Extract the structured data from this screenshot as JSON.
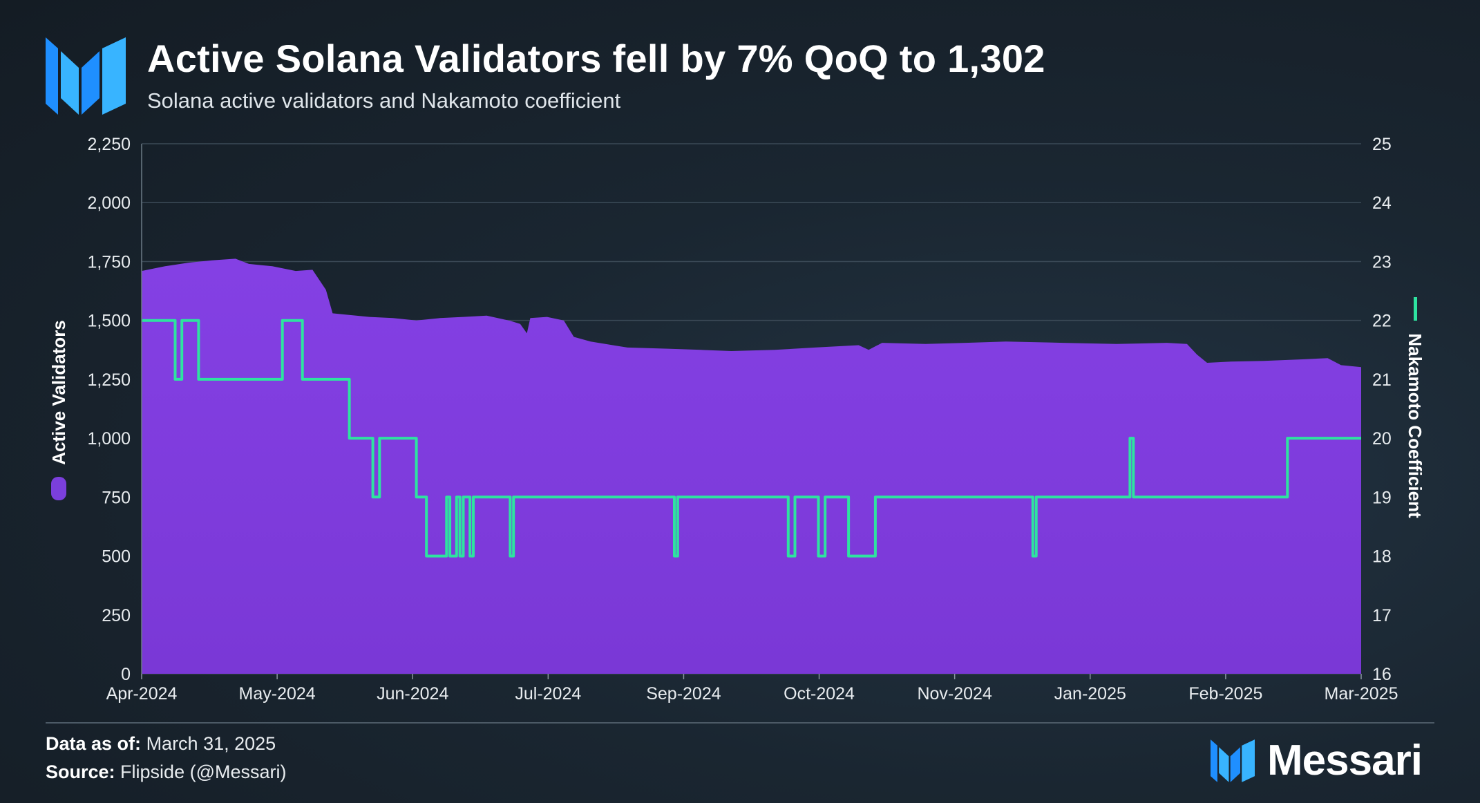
{
  "header": {
    "title": "Active Solana Validators fell by 7% QoQ to 1,302",
    "subtitle": "Solana active validators and Nakamoto coefficient"
  },
  "footer": {
    "data_as_of_label": "Data as of:",
    "data_as_of_value": "March 31, 2025",
    "source_label": "Source:",
    "source_value": "Flipside (@Messari)",
    "brand_name": "Messari"
  },
  "colors": {
    "validators": "#7b3fdc",
    "nakamoto": "#2ee3a0",
    "brand": "#1f8fff"
  },
  "icons": [
    "messari-logo-icon",
    "legend-validators-swatch-icon",
    "legend-nakamoto-line-icon"
  ],
  "chart_data": {
    "type": "area",
    "x_tick_labels": [
      "Apr-2024",
      "May-2024",
      "Jun-2024",
      "Jul-2024",
      "Sep-2024",
      "Oct-2024",
      "Nov-2024",
      "Jan-2025",
      "Feb-2025",
      "Mar-2025"
    ],
    "y_left": {
      "label": "Active Validators",
      "lim": [
        0,
        2250
      ],
      "ticks": [
        0,
        250,
        500,
        750,
        1000,
        1250,
        1500,
        1750,
        2000,
        2250
      ],
      "tick_labels": [
        "0",
        "250",
        "500",
        "750",
        "1,000",
        "1,250",
        "1,500",
        "1,750",
        "2,000",
        "2,250"
      ]
    },
    "y_right": {
      "label": "Nakamoto Coefficient",
      "lim": [
        16,
        25
      ],
      "ticks": [
        16,
        17,
        18,
        19,
        20,
        21,
        22,
        23,
        24,
        25
      ],
      "tick_labels": [
        "16",
        "17",
        "18",
        "19",
        "20",
        "21",
        "22",
        "23",
        "24",
        "25"
      ]
    },
    "grid": true,
    "series": [
      {
        "name": "Active Validators",
        "type": "area",
        "axis": "left",
        "points": [
          [
            "2024-04-01",
            1710
          ],
          [
            "2024-04-08",
            1730
          ],
          [
            "2024-04-15",
            1745
          ],
          [
            "2024-04-22",
            1755
          ],
          [
            "2024-04-29",
            1762
          ],
          [
            "2024-05-03",
            1740
          ],
          [
            "2024-05-10",
            1730
          ],
          [
            "2024-05-17",
            1710
          ],
          [
            "2024-05-22",
            1715
          ],
          [
            "2024-05-26",
            1630
          ],
          [
            "2024-05-28",
            1530
          ],
          [
            "2024-06-08",
            1515
          ],
          [
            "2024-06-15",
            1510
          ],
          [
            "2024-06-22",
            1500
          ],
          [
            "2024-06-29",
            1510
          ],
          [
            "2024-07-06",
            1515
          ],
          [
            "2024-07-13",
            1520
          ],
          [
            "2024-07-20",
            1498
          ],
          [
            "2024-07-23",
            1485
          ],
          [
            "2024-07-25",
            1445
          ],
          [
            "2024-07-26",
            1510
          ],
          [
            "2024-07-31",
            1515
          ],
          [
            "2024-08-05",
            1500
          ],
          [
            "2024-08-08",
            1430
          ],
          [
            "2024-08-13",
            1410
          ],
          [
            "2024-08-24",
            1385
          ],
          [
            "2024-09-05",
            1380
          ],
          [
            "2024-09-15",
            1375
          ],
          [
            "2024-09-24",
            1370
          ],
          [
            "2024-10-07",
            1375
          ],
          [
            "2024-10-19",
            1385
          ],
          [
            "2024-11-01",
            1395
          ],
          [
            "2024-11-04",
            1375
          ],
          [
            "2024-11-08",
            1405
          ],
          [
            "2024-11-21",
            1400
          ],
          [
            "2024-12-03",
            1405
          ],
          [
            "2024-12-15",
            1410
          ],
          [
            "2025-01-01",
            1405
          ],
          [
            "2025-01-17",
            1400
          ],
          [
            "2025-02-01",
            1405
          ],
          [
            "2025-02-07",
            1400
          ],
          [
            "2025-02-10",
            1355
          ],
          [
            "2025-02-13",
            1320
          ],
          [
            "2025-02-20",
            1325
          ],
          [
            "2025-03-02",
            1328
          ],
          [
            "2025-03-14",
            1335
          ],
          [
            "2025-03-21",
            1340
          ],
          [
            "2025-03-25",
            1310
          ],
          [
            "2025-03-31",
            1302
          ]
        ]
      },
      {
        "name": "Nakamoto Coefficient",
        "type": "step",
        "axis": "right",
        "points": [
          [
            "2024-04-01",
            22
          ],
          [
            "2024-04-11",
            21
          ],
          [
            "2024-04-13",
            22
          ],
          [
            "2024-04-18",
            21
          ],
          [
            "2024-05-13",
            22
          ],
          [
            "2024-05-19",
            21
          ],
          [
            "2024-06-02",
            20
          ],
          [
            "2024-06-09",
            19
          ],
          [
            "2024-06-11",
            20
          ],
          [
            "2024-06-22",
            19
          ],
          [
            "2024-06-25",
            18
          ],
          [
            "2024-07-01",
            19
          ],
          [
            "2024-07-02",
            18
          ],
          [
            "2024-07-04",
            19
          ],
          [
            "2024-07-05",
            18
          ],
          [
            "2024-07-06",
            19
          ],
          [
            "2024-07-08",
            18
          ],
          [
            "2024-07-09",
            19
          ],
          [
            "2024-07-20",
            18
          ],
          [
            "2024-07-21",
            19
          ],
          [
            "2024-09-07",
            18
          ],
          [
            "2024-09-08",
            19
          ],
          [
            "2024-10-11",
            18
          ],
          [
            "2024-10-13",
            19
          ],
          [
            "2024-10-20",
            18
          ],
          [
            "2024-10-22",
            19
          ],
          [
            "2024-10-29",
            18
          ],
          [
            "2024-11-06",
            19
          ],
          [
            "2024-12-23",
            18
          ],
          [
            "2024-12-24",
            19
          ],
          [
            "2025-01-21",
            20
          ],
          [
            "2025-01-22",
            19
          ],
          [
            "2025-03-09",
            20
          ],
          [
            "2025-03-31",
            20
          ]
        ]
      }
    ]
  }
}
